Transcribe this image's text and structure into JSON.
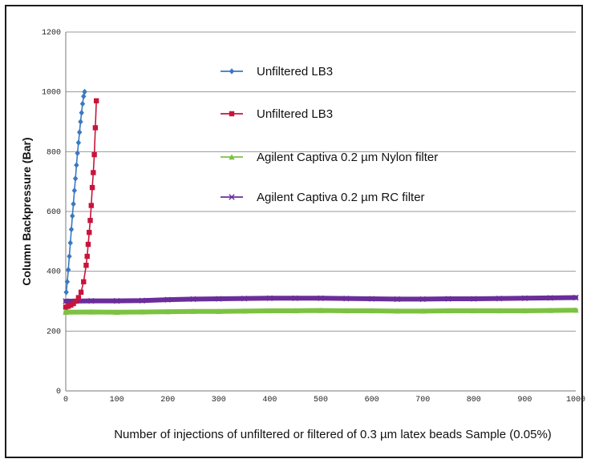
{
  "chart_data": {
    "type": "line",
    "title": "",
    "xlabel": "Number of injections of unfiltered or filtered of 0.3 µm latex beads Sample (0.05%)",
    "ylabel": "Column Backpressure (Bar)",
    "xlim": [
      0,
      1000
    ],
    "ylim": [
      0,
      1200
    ],
    "x_ticks": [
      0,
      100,
      200,
      300,
      400,
      500,
      600,
      700,
      800,
      900,
      1000
    ],
    "y_ticks": [
      0,
      200,
      400,
      600,
      800,
      1000,
      1200
    ],
    "grid": "horizontal",
    "legend_position": "top-right",
    "series": [
      {
        "name": "Unfiltered LB3",
        "color": "#3a78c2",
        "marker": "diamond",
        "x": [
          1,
          3,
          5,
          7,
          9,
          11,
          13,
          15,
          17,
          19,
          21,
          23,
          25,
          27,
          29,
          31,
          33,
          35,
          37
        ],
        "y": [
          330,
          365,
          405,
          450,
          495,
          540,
          585,
          625,
          670,
          710,
          755,
          795,
          830,
          865,
          900,
          930,
          960,
          985,
          1000
        ]
      },
      {
        "name": "Unfiltered LB3",
        "color": "#c8143c",
        "marker": "square",
        "x": [
          0,
          5,
          10,
          15,
          20,
          25,
          30,
          35,
          40,
          42,
          44,
          46,
          48,
          50,
          52,
          54,
          56,
          58,
          60
        ],
        "y": [
          280,
          283,
          287,
          292,
          300,
          312,
          330,
          365,
          420,
          450,
          490,
          530,
          570,
          620,
          680,
          730,
          790,
          880,
          970
        ]
      },
      {
        "name": "Agilent Captiva 0.2 µm Nylon filter",
        "color": "#7cc242",
        "marker": "triangle",
        "x": [
          0,
          50,
          100,
          150,
          200,
          250,
          300,
          350,
          400,
          450,
          500,
          550,
          600,
          650,
          700,
          750,
          800,
          850,
          900,
          950,
          1000
        ],
        "y": [
          263,
          264,
          263,
          264,
          265,
          266,
          266,
          267,
          268,
          268,
          269,
          268,
          268,
          267,
          267,
          268,
          268,
          268,
          268,
          269,
          270
        ]
      },
      {
        "name": "Agilent Captiva 0.2 µm RC filter",
        "color": "#6a2d9a",
        "marker": "x",
        "x": [
          0,
          50,
          100,
          150,
          200,
          250,
          300,
          350,
          400,
          450,
          500,
          550,
          600,
          650,
          700,
          750,
          800,
          850,
          900,
          950,
          1000
        ],
        "y": [
          300,
          301,
          301,
          302,
          305,
          307,
          308,
          309,
          310,
          310,
          310,
          309,
          308,
          307,
          307,
          308,
          308,
          309,
          310,
          311,
          312
        ]
      }
    ]
  }
}
